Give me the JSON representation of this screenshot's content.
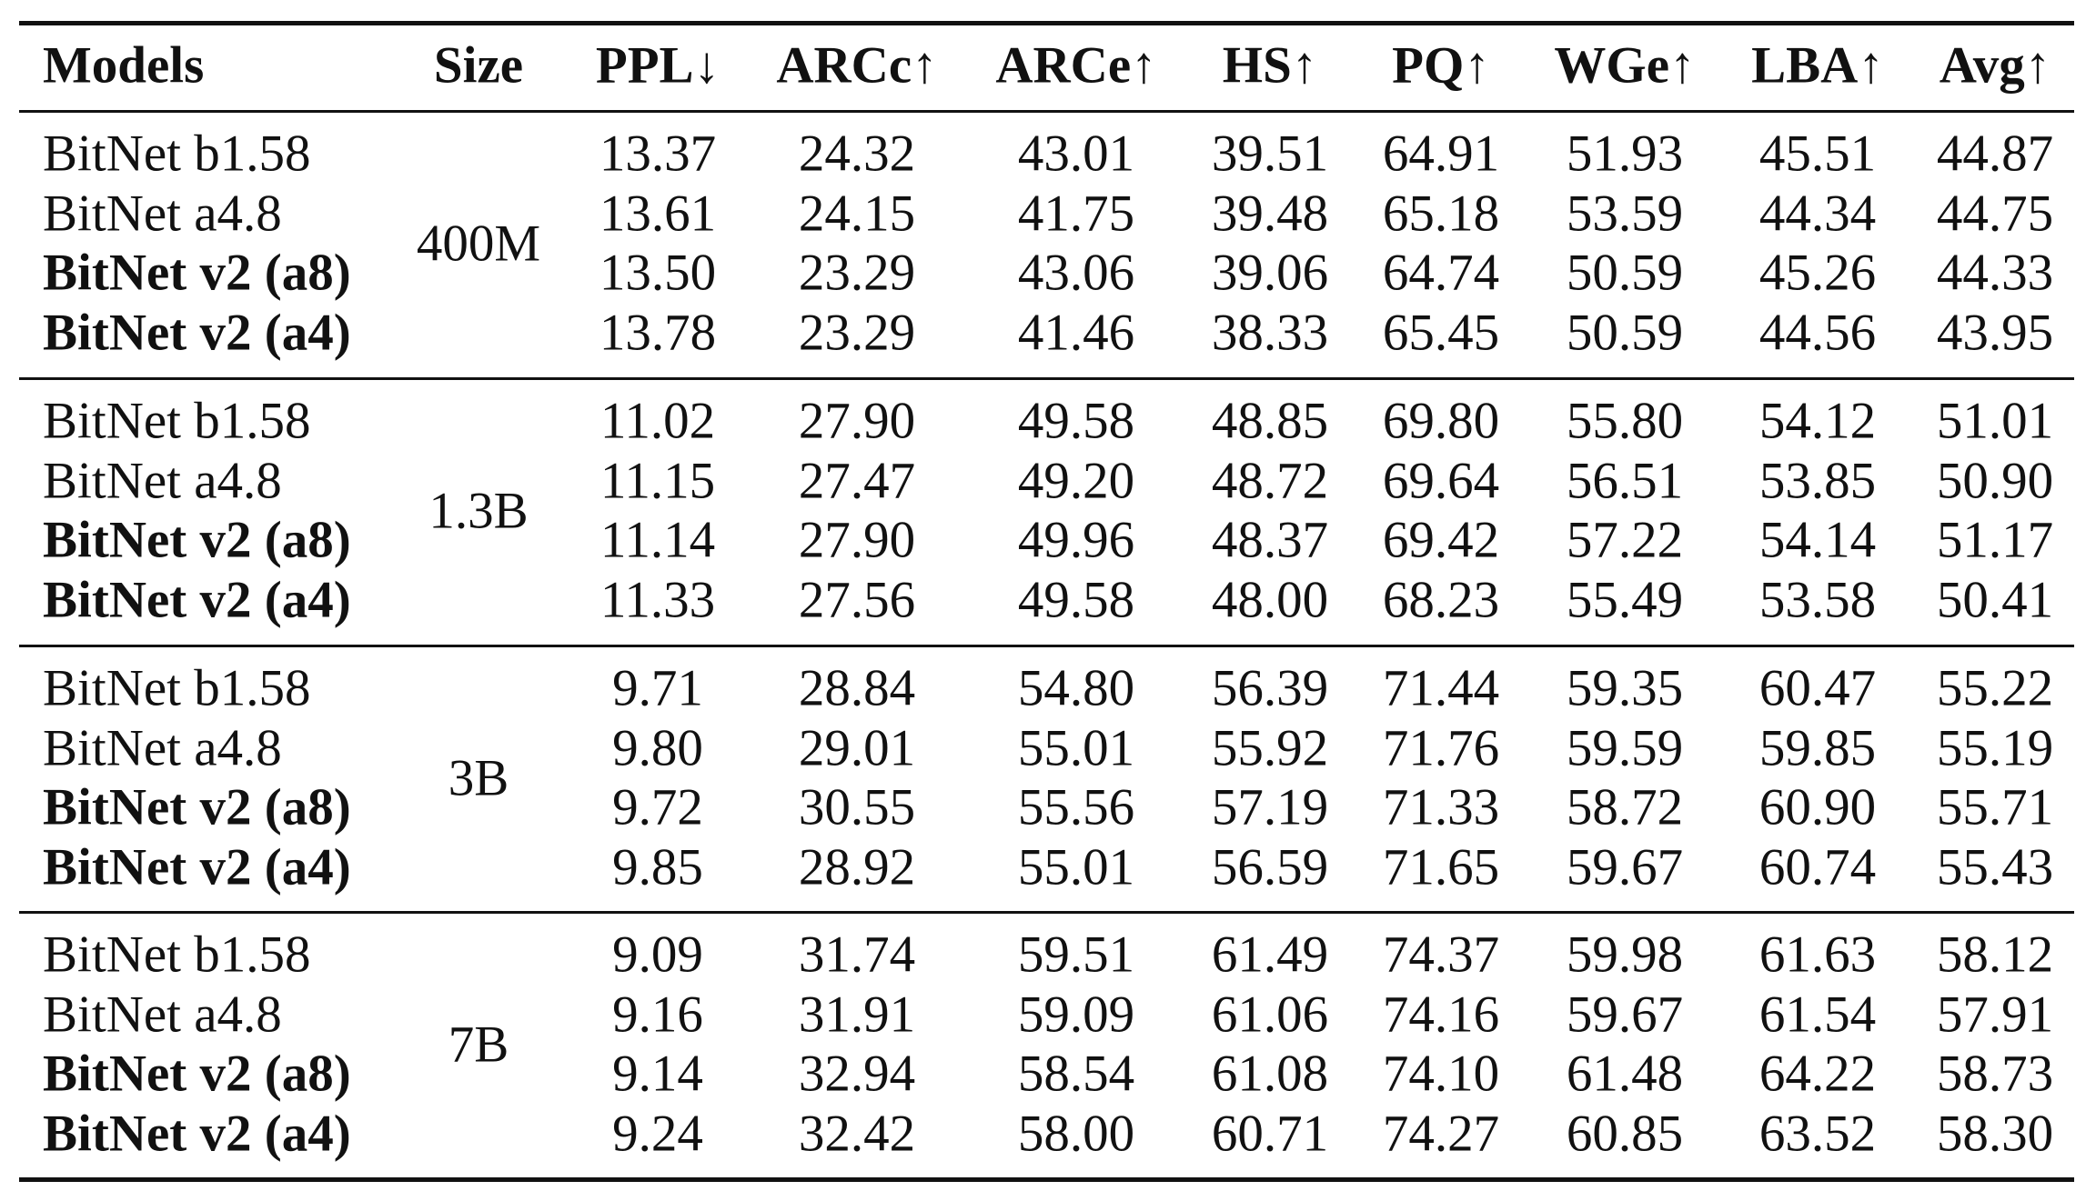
{
  "table": {
    "header": [
      "Models",
      "Size",
      "PPL↓",
      "ARCc↑",
      "ARCe↑",
      "HS↑",
      "PQ↑",
      "WGe↑",
      "LBA↑",
      "Avg↑"
    ],
    "groups": [
      {
        "size": "400M",
        "rows": [
          [
            "BitNet b1.58",
            "13.37",
            "24.32",
            "43.01",
            "39.51",
            "64.91",
            "51.93",
            "45.51",
            "44.87"
          ],
          [
            "BitNet a4.8",
            "13.61",
            "24.15",
            "41.75",
            "39.48",
            "65.18",
            "53.59",
            "44.34",
            "44.75"
          ],
          [
            "BitNet v2 (a8)",
            "13.50",
            "23.29",
            "43.06",
            "39.06",
            "64.74",
            "50.59",
            "45.26",
            "44.33"
          ],
          [
            "BitNet v2 (a4)",
            "13.78",
            "23.29",
            "41.46",
            "38.33",
            "65.45",
            "50.59",
            "44.56",
            "43.95"
          ]
        ]
      },
      {
        "size": "1.3B",
        "rows": [
          [
            "BitNet b1.58",
            "11.02",
            "27.90",
            "49.58",
            "48.85",
            "69.80",
            "55.80",
            "54.12",
            "51.01"
          ],
          [
            "BitNet a4.8",
            "11.15",
            "27.47",
            "49.20",
            "48.72",
            "69.64",
            "56.51",
            "53.85",
            "50.90"
          ],
          [
            "BitNet v2 (a8)",
            "11.14",
            "27.90",
            "49.96",
            "48.37",
            "69.42",
            "57.22",
            "54.14",
            "51.17"
          ],
          [
            "BitNet v2 (a4)",
            "11.33",
            "27.56",
            "49.58",
            "48.00",
            "68.23",
            "55.49",
            "53.58",
            "50.41"
          ]
        ]
      },
      {
        "size": "3B",
        "rows": [
          [
            "BitNet b1.58",
            "9.71",
            "28.84",
            "54.80",
            "56.39",
            "71.44",
            "59.35",
            "60.47",
            "55.22"
          ],
          [
            "BitNet a4.8",
            "9.80",
            "29.01",
            "55.01",
            "55.92",
            "71.76",
            "59.59",
            "59.85",
            "55.19"
          ],
          [
            "BitNet v2 (a8)",
            "9.72",
            "30.55",
            "55.56",
            "57.19",
            "71.33",
            "58.72",
            "60.90",
            "55.71"
          ],
          [
            "BitNet v2 (a4)",
            "9.85",
            "28.92",
            "55.01",
            "56.59",
            "71.65",
            "59.67",
            "60.74",
            "55.43"
          ]
        ]
      },
      {
        "size": "7B",
        "rows": [
          [
            "BitNet b1.58",
            "9.09",
            "31.74",
            "59.51",
            "61.49",
            "74.37",
            "59.98",
            "61.63",
            "58.12"
          ],
          [
            "BitNet a4.8",
            "9.16",
            "31.91",
            "59.09",
            "61.06",
            "74.16",
            "59.67",
            "61.54",
            "57.91"
          ],
          [
            "BitNet v2 (a8)",
            "9.14",
            "32.94",
            "58.54",
            "61.08",
            "74.10",
            "61.48",
            "64.22",
            "58.73"
          ],
          [
            "BitNet v2 (a4)",
            "9.24",
            "32.42",
            "58.00",
            "60.71",
            "74.27",
            "60.85",
            "63.52",
            "58.30"
          ]
        ]
      }
    ]
  }
}
